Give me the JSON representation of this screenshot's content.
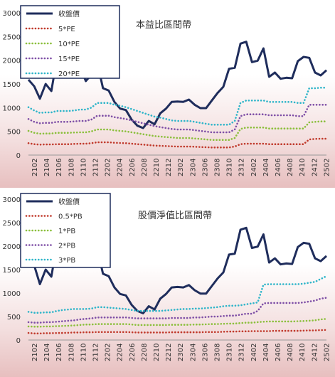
{
  "colors": {
    "close": "#1f2d5c",
    "x05": "#c0392b",
    "x10": "#8bbf3c",
    "x15": "#7e4fa6",
    "x20": "#2fb5c9"
  },
  "chart_data": [
    {
      "type": "line",
      "title": "本益比區間帶",
      "x_ticks": [
        "2102",
        "2104",
        "2106",
        "2108",
        "2110",
        "2112",
        "2202",
        "2204",
        "2206",
        "2208",
        "2210",
        "2212",
        "2302",
        "2304",
        "2306",
        "2308",
        "2310",
        "2312",
        "2402",
        "2404",
        "2406",
        "2408",
        "2410",
        "2412",
        "2502"
      ],
      "ylim": [
        0,
        3000
      ],
      "y_ticks": [
        "0",
        "500",
        "1000",
        "1500",
        "2000",
        "2500",
        "3000"
      ],
      "legend": "top-left",
      "grid": false,
      "series": [
        {
          "name": "收盤價",
          "style": "solid",
          "values": [
            1590,
            1450,
            1190,
            1500,
            1350,
            2060,
            1700,
            1640,
            1960,
            1880,
            1560,
            1700,
            1950,
            1410,
            1360,
            1120,
            980,
            950,
            750,
            620,
            570,
            720,
            650,
            880,
            980,
            1120,
            1130,
            1120,
            1170,
            1060,
            990,
            990,
            1150,
            1310,
            1440,
            1820,
            1840,
            2350,
            2390,
            1960,
            1990,
            2250,
            1650,
            1740,
            1610,
            1630,
            1620,
            1980,
            2070,
            2050,
            1740,
            1680,
            1790
          ]
        },
        {
          "name": "5*PE",
          "style": "dotted",
          "values": [
            250,
            230,
            220,
            225,
            225,
            230,
            230,
            230,
            235,
            240,
            240,
            250,
            270,
            270,
            270,
            260,
            255,
            250,
            240,
            230,
            220,
            210,
            200,
            195,
            190,
            185,
            180,
            180,
            180,
            175,
            170,
            165,
            160,
            160,
            160,
            160,
            180,
            230,
            240,
            240,
            240,
            240,
            230,
            230,
            230,
            230,
            230,
            230,
            230,
            330,
            340,
            345,
            345
          ]
        },
        {
          "name": "10*PE",
          "style": "dotted",
          "values": [
            510,
            470,
            450,
            455,
            455,
            470,
            470,
            470,
            475,
            480,
            480,
            500,
            540,
            540,
            540,
            520,
            510,
            500,
            480,
            460,
            440,
            420,
            400,
            390,
            380,
            370,
            360,
            360,
            360,
            350,
            340,
            330,
            320,
            320,
            320,
            320,
            360,
            550,
            580,
            580,
            580,
            580,
            560,
            560,
            560,
            560,
            560,
            560,
            560,
            690,
            700,
            710,
            710
          ]
        },
        {
          "name": "15*PE",
          "style": "dotted",
          "values": [
            760,
            700,
            670,
            680,
            680,
            700,
            700,
            700,
            710,
            720,
            720,
            750,
            830,
            830,
            830,
            800,
            780,
            760,
            730,
            700,
            670,
            640,
            610,
            590,
            570,
            550,
            540,
            540,
            540,
            525,
            510,
            495,
            480,
            480,
            480,
            480,
            540,
            820,
            860,
            860,
            860,
            860,
            840,
            840,
            840,
            840,
            840,
            820,
            820,
            1060,
            1060,
            1060,
            1060
          ]
        },
        {
          "name": "20*PE",
          "style": "dotted",
          "values": [
            1010,
            940,
            890,
            900,
            900,
            930,
            930,
            930,
            940,
            960,
            960,
            1000,
            1100,
            1100,
            1100,
            1060,
            1040,
            1010,
            970,
            930,
            890,
            850,
            810,
            790,
            760,
            730,
            720,
            720,
            720,
            700,
            680,
            660,
            640,
            640,
            640,
            640,
            720,
            1100,
            1150,
            1150,
            1150,
            1150,
            1120,
            1120,
            1120,
            1120,
            1120,
            1100,
            1100,
            1410,
            1410,
            1420,
            1420
          ]
        }
      ]
    },
    {
      "type": "line",
      "title": "股價淨值比區間帶",
      "x_ticks": [
        "2102",
        "2104",
        "2106",
        "2108",
        "2110",
        "2112",
        "2202",
        "2204",
        "2206",
        "2208",
        "2210",
        "2212",
        "2302",
        "2304",
        "2306",
        "2308",
        "2310",
        "2312",
        "2402",
        "2404",
        "2406",
        "2408",
        "2410",
        "2412",
        "2502"
      ],
      "ylim": [
        0,
        3000
      ],
      "y_ticks": [
        "0",
        "500",
        "1000",
        "1500",
        "2000",
        "2500",
        "3000"
      ],
      "legend": "top-left",
      "grid": false,
      "series": [
        {
          "name": "收盤價",
          "style": "solid",
          "values": [
            1750,
            1590,
            1190,
            1500,
            1350,
            2060,
            1700,
            1640,
            1960,
            1880,
            1560,
            1700,
            1950,
            1410,
            1360,
            1120,
            980,
            950,
            750,
            620,
            570,
            720,
            650,
            880,
            980,
            1120,
            1130,
            1120,
            1170,
            1060,
            990,
            990,
            1150,
            1310,
            1440,
            1820,
            1840,
            2350,
            2390,
            1960,
            1990,
            2250,
            1650,
            1740,
            1610,
            1630,
            1620,
            1980,
            2070,
            2050,
            1740,
            1680,
            1790
          ]
        },
        {
          "name": "0.5*PB",
          "style": "dotted",
          "values": [
            150,
            140,
            140,
            145,
            145,
            150,
            150,
            155,
            160,
            160,
            165,
            165,
            170,
            170,
            170,
            170,
            170,
            170,
            165,
            160,
            160,
            160,
            160,
            160,
            160,
            165,
            165,
            165,
            165,
            165,
            165,
            170,
            170,
            170,
            175,
            180,
            180,
            185,
            185,
            190,
            190,
            190,
            190,
            195,
            195,
            195,
            195,
            195,
            200,
            205,
            205,
            210,
            215
          ]
        },
        {
          "name": "1*PB",
          "style": "dotted",
          "values": [
            290,
            285,
            285,
            290,
            290,
            295,
            300,
            305,
            310,
            320,
            330,
            330,
            340,
            340,
            340,
            340,
            340,
            340,
            330,
            320,
            320,
            320,
            320,
            320,
            320,
            325,
            325,
            325,
            325,
            330,
            330,
            335,
            340,
            340,
            345,
            350,
            350,
            360,
            370,
            370,
            380,
            390,
            395,
            395,
            395,
            395,
            395,
            400,
            405,
            410,
            420,
            440,
            450
          ]
        },
        {
          "name": "2*PB",
          "style": "dotted",
          "values": [
            380,
            370,
            370,
            380,
            380,
            390,
            400,
            410,
            420,
            440,
            450,
            460,
            480,
            480,
            480,
            480,
            480,
            480,
            470,
            460,
            460,
            460,
            460,
            460,
            460,
            470,
            470,
            470,
            470,
            480,
            480,
            490,
            500,
            500,
            510,
            520,
            520,
            540,
            560,
            560,
            620,
            780,
            790,
            790,
            790,
            790,
            790,
            790,
            800,
            820,
            840,
            880,
            900
          ]
        },
        {
          "name": "3*PB",
          "style": "dotted",
          "values": [
            600,
            580,
            580,
            590,
            590,
            620,
            640,
            650,
            660,
            660,
            660,
            670,
            700,
            700,
            690,
            680,
            670,
            660,
            640,
            620,
            620,
            620,
            620,
            620,
            630,
            640,
            650,
            660,
            660,
            670,
            670,
            680,
            690,
            700,
            720,
            730,
            730,
            740,
            760,
            780,
            800,
            1180,
            1190,
            1190,
            1190,
            1190,
            1190,
            1190,
            1200,
            1220,
            1240,
            1300,
            1360
          ]
        }
      ]
    }
  ]
}
